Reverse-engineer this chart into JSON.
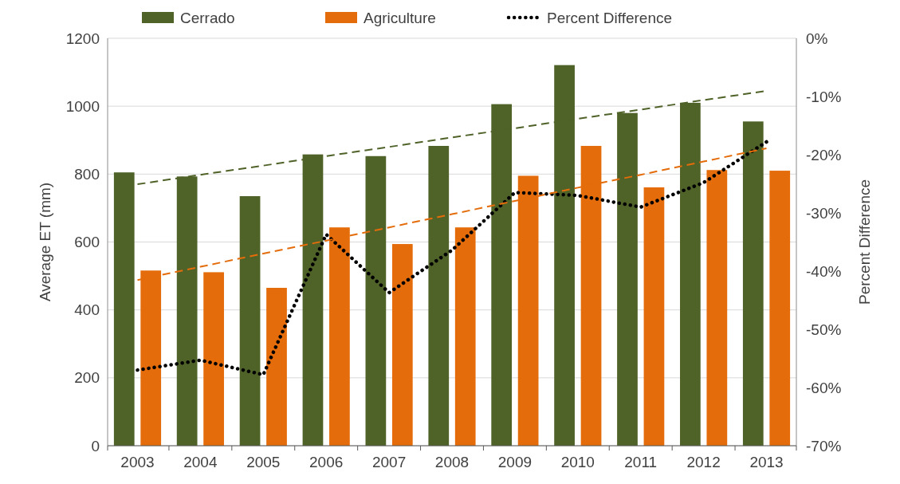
{
  "chart_data": {
    "type": "bar",
    "ylabel": "Average ET (mm)",
    "y2label": "Percent Difference",
    "categories": [
      "2003",
      "2004",
      "2005",
      "2006",
      "2007",
      "2008",
      "2009",
      "2010",
      "2011",
      "2012",
      "2013"
    ],
    "series": [
      {
        "name": "Cerrado",
        "color": "#4f6228",
        "values": [
          805,
          793,
          735,
          858,
          853,
          883,
          1006,
          1121,
          980,
          1010,
          955
        ]
      },
      {
        "name": "Agriculture",
        "color": "#e46c0a",
        "values": [
          516,
          511,
          465,
          643,
          594,
          643,
          795,
          883,
          761,
          812,
          810
        ]
      },
      {
        "name": "Percent Difference",
        "type": "line",
        "axis": "y2",
        "color": "#000000",
        "line_style": "dotted",
        "values": [
          -57,
          -55.3,
          -57.8,
          -33.7,
          -43.7,
          -36.4,
          -26.5,
          -27,
          -29,
          -24.8,
          -17.8
        ]
      },
      {
        "type": "line",
        "color": "#4f6228",
        "line_style": "dashed",
        "values": [
          770,
          798,
          825,
          853,
          880,
          908,
          935,
          963,
          990,
          1018,
          1045
        ]
      },
      {
        "type": "line",
        "color": "#e46c0a",
        "line_style": "dashed",
        "values": [
          488,
          527,
          566,
          604,
          643,
          682,
          721,
          760,
          798,
          837,
          876
        ]
      }
    ],
    "ylim": [
      0,
      1200
    ],
    "yticks": [
      0,
      200,
      400,
      600,
      800,
      1000,
      1200
    ],
    "y2lim": [
      -70,
      0
    ],
    "y2ticks": [
      {
        "value": -70,
        "label": "-70%"
      },
      {
        "value": -60,
        "label": "-60%"
      },
      {
        "value": -50,
        "label": "-50%"
      },
      {
        "value": -40,
        "label": "-40%"
      },
      {
        "value": -30,
        "label": "-30%"
      },
      {
        "value": -20,
        "label": "-20%"
      },
      {
        "value": -10,
        "label": "-10%"
      },
      {
        "value": 0,
        "label": "0%"
      }
    ],
    "grid": "y",
    "legend": "top",
    "marker": "none"
  }
}
